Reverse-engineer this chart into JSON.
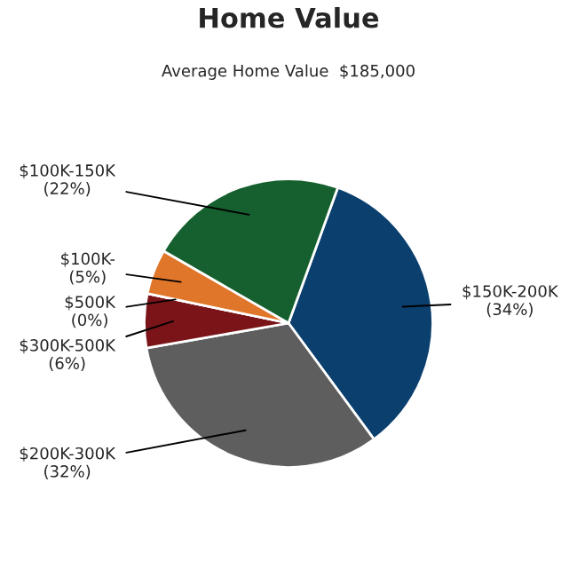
{
  "chart_data": {
    "type": "pie",
    "title": "Home Value",
    "subtitle": "Average Home Value  $185,000",
    "categories": [
      "$150K-200K",
      "$200K-300K",
      "$300K-500K",
      "$500K",
      "$100K-",
      "$100K-150K"
    ],
    "values": [
      34,
      32,
      6,
      0,
      5,
      22
    ],
    "value_labels": [
      "(34%)",
      "(32%)",
      "(6%)",
      "(0%)",
      "(5%)",
      "(22%)"
    ],
    "colors": [
      "#0b3f6e",
      "#5e5e5e",
      "#7a1418",
      "#a01c1c",
      "#e0762a",
      "#15602e"
    ]
  }
}
